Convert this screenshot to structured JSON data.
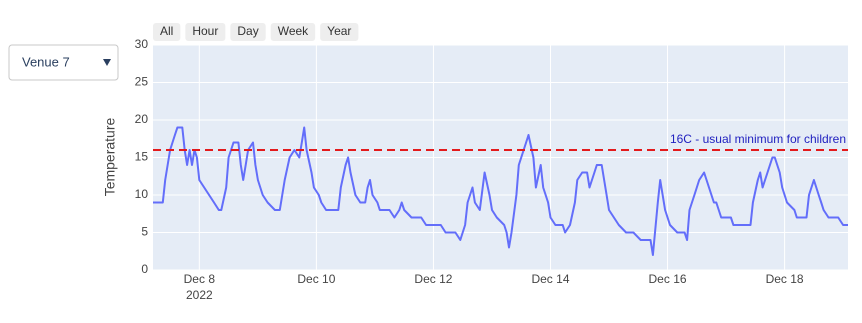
{
  "dropdown": {
    "selected": "Venue 7"
  },
  "range_buttons": [
    "All",
    "Hour",
    "Day",
    "Week",
    "Year"
  ],
  "chart_data": {
    "type": "line",
    "y_label": "Temperature",
    "x": [
      "2022-12-07T05:00",
      "2022-12-07T09:00",
      "2022-12-07T10:00",
      "2022-12-07T12:00",
      "2022-12-07T14:00",
      "2022-12-07T15:00",
      "2022-12-07T17:00",
      "2022-12-07T18:00",
      "2022-12-07T19:00",
      "2022-12-07T20:00",
      "2022-12-07T21:00",
      "2022-12-07T22:00",
      "2022-12-07T23:00",
      "2022-12-08T00:00",
      "2022-12-08T02:00",
      "2022-12-08T04:00",
      "2022-12-08T06:00",
      "2022-12-08T08:00",
      "2022-12-08T09:00",
      "2022-12-08T11:00",
      "2022-12-08T12:00",
      "2022-12-08T14:00",
      "2022-12-08T16:00",
      "2022-12-08T17:00",
      "2022-12-08T18:00",
      "2022-12-08T19:00",
      "2022-12-08T20:00",
      "2022-12-08T22:00",
      "2022-12-08T23:00",
      "2022-12-09T00:00",
      "2022-12-09T02:00",
      "2022-12-09T04:00",
      "2022-12-09T07:00",
      "2022-12-09T09:00",
      "2022-12-09T11:00",
      "2022-12-09T13:00",
      "2022-12-09T15:00",
      "2022-12-09T17:00",
      "2022-12-09T18:00",
      "2022-12-09T19:00",
      "2022-12-09T20:00",
      "2022-12-09T22:00",
      "2022-12-09T23:00",
      "2022-12-10T01:00",
      "2022-12-10T02:00",
      "2022-12-10T04:00",
      "2022-12-10T09:00",
      "2022-12-10T10:00",
      "2022-12-10T12:00",
      "2022-12-10T13:00",
      "2022-12-10T14:00",
      "2022-12-10T16:00",
      "2022-12-10T18:00",
      "2022-12-10T20:00",
      "2022-12-10T21:00",
      "2022-12-10T22:00",
      "2022-12-10T23:00",
      "2022-12-11T01:00",
      "2022-12-11T02:00",
      "2022-12-11T06:00",
      "2022-12-11T08:00",
      "2022-12-11T10:00",
      "2022-12-11T11:00",
      "2022-12-11T12:00",
      "2022-12-11T15:00",
      "2022-12-11T19:00",
      "2022-12-11T21:00",
      "2022-12-12T03:00",
      "2022-12-12T05:00",
      "2022-12-12T09:00",
      "2022-12-12T11:00",
      "2022-12-12T13:00",
      "2022-12-12T14:00",
      "2022-12-12T16:00",
      "2022-12-12T17:00",
      "2022-12-12T19:00",
      "2022-12-12T21:00",
      "2022-12-12T23:00",
      "2022-12-13T00:00",
      "2022-12-13T02:00",
      "2022-12-13T05:00",
      "2022-12-13T06:00",
      "2022-12-13T07:00",
      "2022-12-13T08:00",
      "2022-12-13T10:00",
      "2022-12-13T11:00",
      "2022-12-13T14:00",
      "2022-12-13T15:00",
      "2022-12-13T17:00",
      "2022-12-13T18:00",
      "2022-12-13T20:00",
      "2022-12-13T21:00",
      "2022-12-13T23:00",
      "2022-12-14T00:00",
      "2022-12-14T02:00",
      "2022-12-14T05:00",
      "2022-12-14T06:00",
      "2022-12-14T08:00",
      "2022-12-14T10:00",
      "2022-12-14T11:00",
      "2022-12-14T13:00",
      "2022-12-14T15:00",
      "2022-12-14T16:00",
      "2022-12-14T18:00",
      "2022-12-14T19:00",
      "2022-12-14T21:00",
      "2022-12-14T23:00",
      "2022-12-15T00:00",
      "2022-12-15T02:00",
      "2022-12-15T04:00",
      "2022-12-15T07:00",
      "2022-12-15T10:00",
      "2022-12-15T13:00",
      "2022-12-15T17:00",
      "2022-12-15T18:00",
      "2022-12-15T20:00",
      "2022-12-15T21:00",
      "2022-12-15T23:00",
      "2022-12-16T01:00",
      "2022-12-16T04:00",
      "2022-12-16T07:00",
      "2022-12-16T08:00",
      "2022-12-16T09:00",
      "2022-12-16T11:00",
      "2022-12-16T13:00",
      "2022-12-16T15:00",
      "2022-12-16T17:00",
      "2022-12-16T19:00",
      "2022-12-16T20:00",
      "2022-12-16T22:00",
      "2022-12-17T02:00",
      "2022-12-17T03:00",
      "2022-12-17T10:00",
      "2022-12-17T11:00",
      "2022-12-17T13:00",
      "2022-12-17T14:00",
      "2022-12-17T15:00",
      "2022-12-17T17:00",
      "2022-12-17T19:00",
      "2022-12-17T20:00",
      "2022-12-17T22:00",
      "2022-12-17T23:00",
      "2022-12-18T01:00",
      "2022-12-18T04:00",
      "2022-12-18T05:00",
      "2022-12-18T09:00",
      "2022-12-18T10:00",
      "2022-12-18T12:00",
      "2022-12-18T14:00",
      "2022-12-18T15:00",
      "2022-12-18T16:00",
      "2022-12-18T18:00",
      "2022-12-18T22:00",
      "2022-12-19T00:00",
      "2022-12-19T02:00"
    ],
    "values": [
      9,
      9,
      12,
      16,
      18,
      19,
      19,
      16,
      14,
      16,
      14,
      16,
      15,
      12,
      11,
      10,
      9,
      8,
      8,
      11,
      15,
      17,
      17,
      14,
      12,
      14,
      16,
      17,
      14,
      12,
      10,
      9,
      8,
      8,
      12,
      15,
      16,
      15,
      17,
      19,
      16,
      13,
      11,
      10,
      9,
      8,
      8,
      11,
      14,
      15,
      13,
      10,
      9,
      9,
      11,
      12,
      10,
      9,
      8,
      8,
      7,
      8,
      9,
      8,
      7,
      7,
      6,
      6,
      5,
      5,
      4,
      6,
      9,
      11,
      9,
      8,
      13,
      10,
      8,
      7,
      6,
      5,
      3,
      5,
      10,
      14,
      17,
      18,
      15,
      11,
      14,
      11,
      9,
      7,
      6,
      6,
      5,
      6,
      9,
      12,
      13,
      13,
      11,
      13,
      14,
      14,
      10,
      8,
      7,
      6,
      5,
      5,
      4,
      4,
      2,
      9,
      12,
      8,
      6,
      5,
      5,
      4,
      8,
      10,
      12,
      13,
      11,
      9,
      9,
      7,
      7,
      6,
      6,
      9,
      12,
      13,
      11,
      13,
      15,
      15,
      13,
      11,
      9,
      8,
      7,
      7,
      10,
      12,
      10,
      9,
      8,
      7,
      7,
      6,
      6
    ],
    "color": "#636efa",
    "xlim": [
      "2022-12-07T05:00",
      "2022-12-19T02:00"
    ],
    "xticks": [
      {
        "value": "2022-12-08T00:00",
        "label": "Dec 8"
      },
      {
        "value": "2022-12-10T00:00",
        "label": "Dec 10"
      },
      {
        "value": "2022-12-12T00:00",
        "label": "Dec 12"
      },
      {
        "value": "2022-12-14T00:00",
        "label": "Dec 14"
      },
      {
        "value": "2022-12-16T00:00",
        "label": "Dec 16"
      },
      {
        "value": "2022-12-18T00:00",
        "label": "Dec 18"
      }
    ],
    "x_year_label": "2022",
    "ylim": [
      0,
      30
    ],
    "yticks": [
      0,
      5,
      10,
      15,
      20,
      25,
      30
    ],
    "grid": true,
    "reference_line": {
      "value": 16,
      "color": "#e31a1c",
      "label": "16C - usual minimum for children",
      "label_color": "#1f1fbf"
    }
  }
}
